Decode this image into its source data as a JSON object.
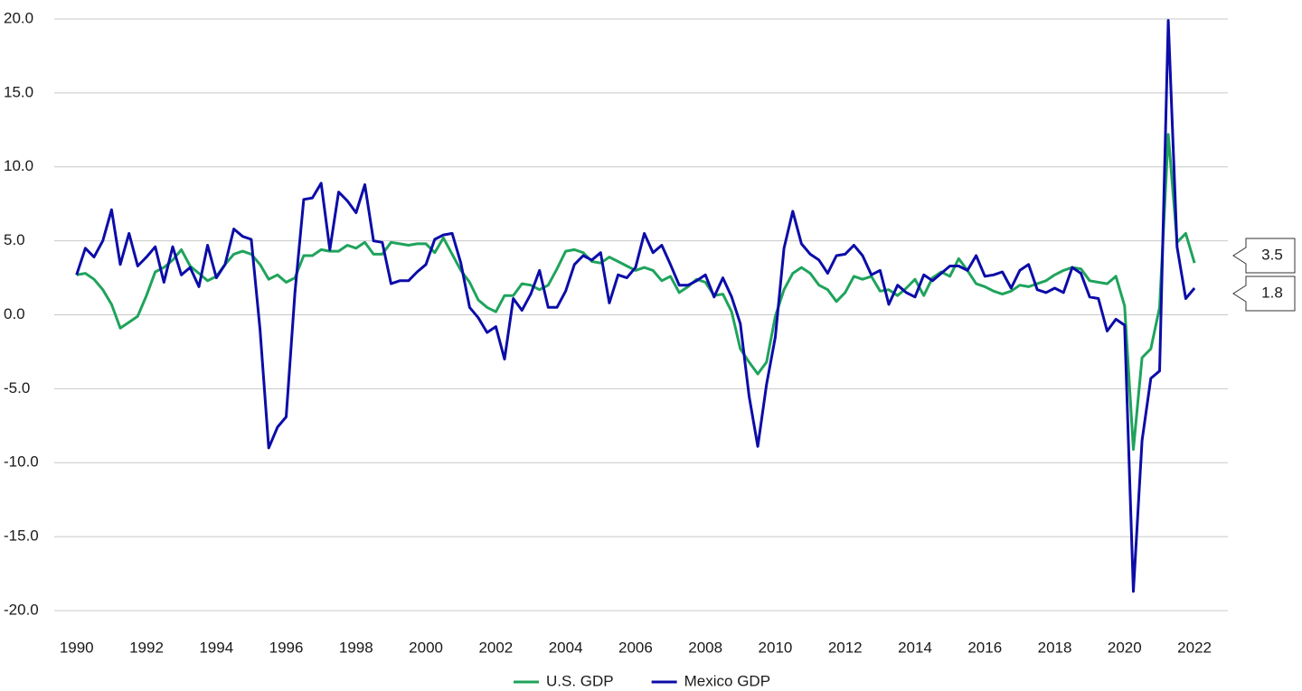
{
  "chart_data": {
    "type": "line",
    "x": [
      1990,
      1990.25,
      1990.5,
      1990.75,
      1991,
      1991.25,
      1991.5,
      1991.75,
      1992,
      1992.25,
      1992.5,
      1992.75,
      1993,
      1993.25,
      1993.5,
      1993.75,
      1994,
      1994.25,
      1994.5,
      1994.75,
      1995,
      1995.25,
      1995.5,
      1995.75,
      1996,
      1996.25,
      1996.5,
      1996.75,
      1997,
      1997.25,
      1997.5,
      1997.75,
      1998,
      1998.25,
      1998.5,
      1998.75,
      1999,
      1999.25,
      1999.5,
      1999.75,
      2000,
      2000.25,
      2000.5,
      2000.75,
      2001,
      2001.25,
      2001.5,
      2001.75,
      2002,
      2002.25,
      2002.5,
      2002.75,
      2003,
      2003.25,
      2003.5,
      2003.75,
      2004,
      2004.25,
      2004.5,
      2004.75,
      2005,
      2005.25,
      2005.5,
      2005.75,
      2006,
      2006.25,
      2006.5,
      2006.75,
      2007,
      2007.25,
      2007.5,
      2007.75,
      2008,
      2008.25,
      2008.5,
      2008.75,
      2009,
      2009.25,
      2009.5,
      2009.75,
      2010,
      2010.25,
      2010.5,
      2010.75,
      2011,
      2011.25,
      2011.5,
      2011.75,
      2012,
      2012.25,
      2012.5,
      2012.75,
      2013,
      2013.25,
      2013.5,
      2013.75,
      2014,
      2014.25,
      2014.5,
      2014.75,
      2015,
      2015.25,
      2015.5,
      2015.75,
      2016,
      2016.25,
      2016.5,
      2016.75,
      2017,
      2017.25,
      2017.5,
      2017.75,
      2018,
      2018.25,
      2018.5,
      2018.75,
      2019,
      2019.25,
      2019.5,
      2019.75,
      2020,
      2020.25,
      2020.5,
      2020.75,
      2021,
      2021.25,
      2021.5,
      2021.75,
      2022
    ],
    "series": [
      {
        "name": "U.S. GDP",
        "color": "#1fa35c",
        "values": [
          2.7,
          2.8,
          2.4,
          1.7,
          0.7,
          -0.9,
          -0.5,
          -0.1,
          1.3,
          2.9,
          3.2,
          3.7,
          4.4,
          3.3,
          2.8,
          2.3,
          2.6,
          3.4,
          4.1,
          4.3,
          4.1,
          3.4,
          2.4,
          2.7,
          2.2,
          2.5,
          4.0,
          4.0,
          4.4,
          4.3,
          4.3,
          4.7,
          4.5,
          4.9,
          4.1,
          4.1,
          4.9,
          4.8,
          4.7,
          4.8,
          4.8,
          4.2,
          5.2,
          4.1,
          3.0,
          2.2,
          1.0,
          0.5,
          0.2,
          1.3,
          1.3,
          2.1,
          2.0,
          1.7,
          2.0,
          3.1,
          4.3,
          4.4,
          4.2,
          3.6,
          3.5,
          3.9,
          3.6,
          3.3,
          3.0,
          3.2,
          3.0,
          2.3,
          2.6,
          1.5,
          1.9,
          2.4,
          2.2,
          1.3,
          1.4,
          0.2,
          -2.3,
          -3.2,
          -4.0,
          -3.2,
          -0.1,
          1.7,
          2.8,
          3.2,
          2.8,
          2.0,
          1.7,
          0.9,
          1.5,
          2.6,
          2.4,
          2.6,
          1.6,
          1.7,
          1.3,
          1.8,
          2.4,
          1.3,
          2.5,
          2.9,
          2.6,
          3.8,
          3.0,
          2.1,
          1.9,
          1.6,
          1.4,
          1.6,
          2.0,
          1.9,
          2.1,
          2.3,
          2.7,
          3.0,
          3.2,
          3.1,
          2.3,
          2.2,
          2.1,
          2.6,
          0.6,
          -9.1,
          -2.9,
          -2.3,
          0.5,
          12.2,
          4.9,
          5.5,
          3.5
        ]
      },
      {
        "name": "Mexico GDP",
        "color": "#0c0ca8",
        "values": [
          2.7,
          4.5,
          3.9,
          5.0,
          7.1,
          3.4,
          5.5,
          3.3,
          3.9,
          4.6,
          2.2,
          4.6,
          2.7,
          3.2,
          1.9,
          4.7,
          2.5,
          3.4,
          5.8,
          5.3,
          5.1,
          -1.0,
          -9.0,
          -7.6,
          -6.9,
          1.5,
          7.8,
          7.9,
          8.9,
          4.4,
          8.3,
          7.7,
          6.9,
          8.8,
          5.0,
          4.9,
          2.1,
          2.3,
          2.3,
          2.9,
          3.4,
          5.1,
          5.4,
          5.5,
          3.5,
          0.5,
          -0.2,
          -1.2,
          -0.8,
          -3.0,
          1.1,
          0.3,
          1.4,
          3.0,
          0.5,
          0.5,
          1.6,
          3.4,
          4.0,
          3.7,
          4.2,
          0.8,
          2.7,
          2.5,
          3.2,
          5.5,
          4.2,
          4.7,
          3.4,
          2.0,
          2.0,
          2.3,
          2.7,
          1.2,
          2.5,
          1.2,
          -0.6,
          -5.5,
          -8.9,
          -4.7,
          -1.5,
          4.5,
          7.0,
          4.8,
          4.1,
          3.7,
          2.8,
          4.0,
          4.1,
          4.7,
          4.0,
          2.7,
          3.0,
          0.7,
          2.0,
          1.5,
          1.2,
          2.7,
          2.3,
          2.8,
          3.3,
          3.3,
          3.0,
          4.0,
          2.6,
          2.7,
          2.9,
          1.8,
          3.0,
          3.4,
          1.7,
          1.5,
          1.8,
          1.5,
          3.2,
          2.8,
          1.2,
          1.1,
          -1.1,
          -0.3,
          -0.7,
          -18.7,
          -8.5,
          -4.3,
          -3.8,
          19.9,
          4.6,
          1.1,
          1.8
        ]
      }
    ],
    "xlim": [
      1989.8,
      2022.8
    ],
    "xticks": [
      1990,
      1992,
      1994,
      1996,
      1998,
      2000,
      2002,
      2004,
      2006,
      2008,
      2010,
      2012,
      2014,
      2016,
      2018,
      2020,
      2022
    ],
    "ylim": [
      -20,
      20
    ],
    "yticks": [
      {
        "value": 20,
        "label": "20.0"
      },
      {
        "value": 15,
        "label": "15.0"
      },
      {
        "value": 10,
        "label": "10.0"
      },
      {
        "value": 5,
        "label": "5.0"
      },
      {
        "value": 0,
        "label": "0.0"
      },
      {
        "value": -5,
        "label": "-5.0"
      },
      {
        "value": -10,
        "label": "-10.0"
      },
      {
        "value": -15,
        "label": "-15.0"
      },
      {
        "value": -20,
        "label": "-20.0"
      }
    ],
    "grid": true,
    "legend": "bottom"
  }
}
